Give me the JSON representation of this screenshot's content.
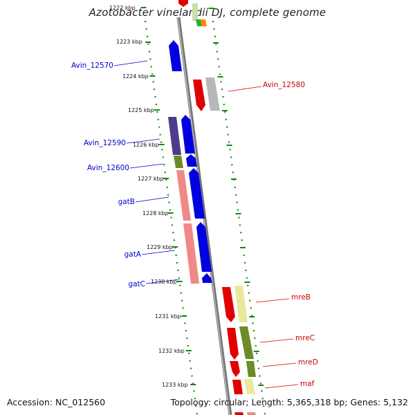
{
  "title": "Azotobacter vinelandii DJ, complete genome",
  "accession": "Accession: NC_012560",
  "topology": "Topology: circular; Length: 5,365,318 bp; Genes: 5,132",
  "colors": {
    "forward_label": "#0000cc",
    "reverse_label": "#cc0000",
    "tick": "#118811",
    "backbone": "#999999"
  },
  "ticks": [
    "1222 kbp",
    "1223 kbp",
    "1224 kbp",
    "1225 kbp",
    "1226 kbp",
    "1227 kbp",
    "1228 kbp",
    "1229 kbp",
    "1230 kbp",
    "1231 kbp",
    "1232 kbp",
    "1233 kbp"
  ],
  "labels_left": [
    "Avin_12570",
    "Avin_12590",
    "Avin_12600",
    "gatB",
    "gatA",
    "gatC"
  ],
  "labels_right": [
    "Avin_12580",
    "mreB",
    "mreC",
    "mreD",
    "maf"
  ]
}
